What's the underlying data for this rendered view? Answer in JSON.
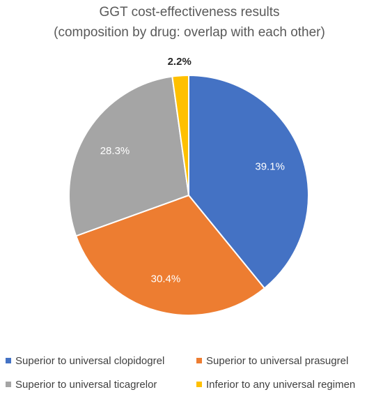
{
  "chart_data": {
    "type": "pie",
    "title": "GGT cost-effectiveness results",
    "subtitle": "(composition by drug: overlap with each other)",
    "categories": [
      "Superior to universal clopidogrel",
      "Superior to universal prasugrel",
      "Superior to universal ticagrelor",
      "Inferior to any universal regimen"
    ],
    "values": [
      39.1,
      30.4,
      28.3,
      2.2
    ],
    "data_labels": [
      "39.1%",
      "30.4%",
      "28.3%",
      "2.2%"
    ],
    "colors": [
      "#4472C4",
      "#ED7D31",
      "#A5A5A5",
      "#FFC000"
    ],
    "label_colors": [
      "#ffffff",
      "#ffffff",
      "#ffffff",
      "#262626"
    ],
    "legend_position": "bottom",
    "start_angle": "top, clockwise"
  }
}
